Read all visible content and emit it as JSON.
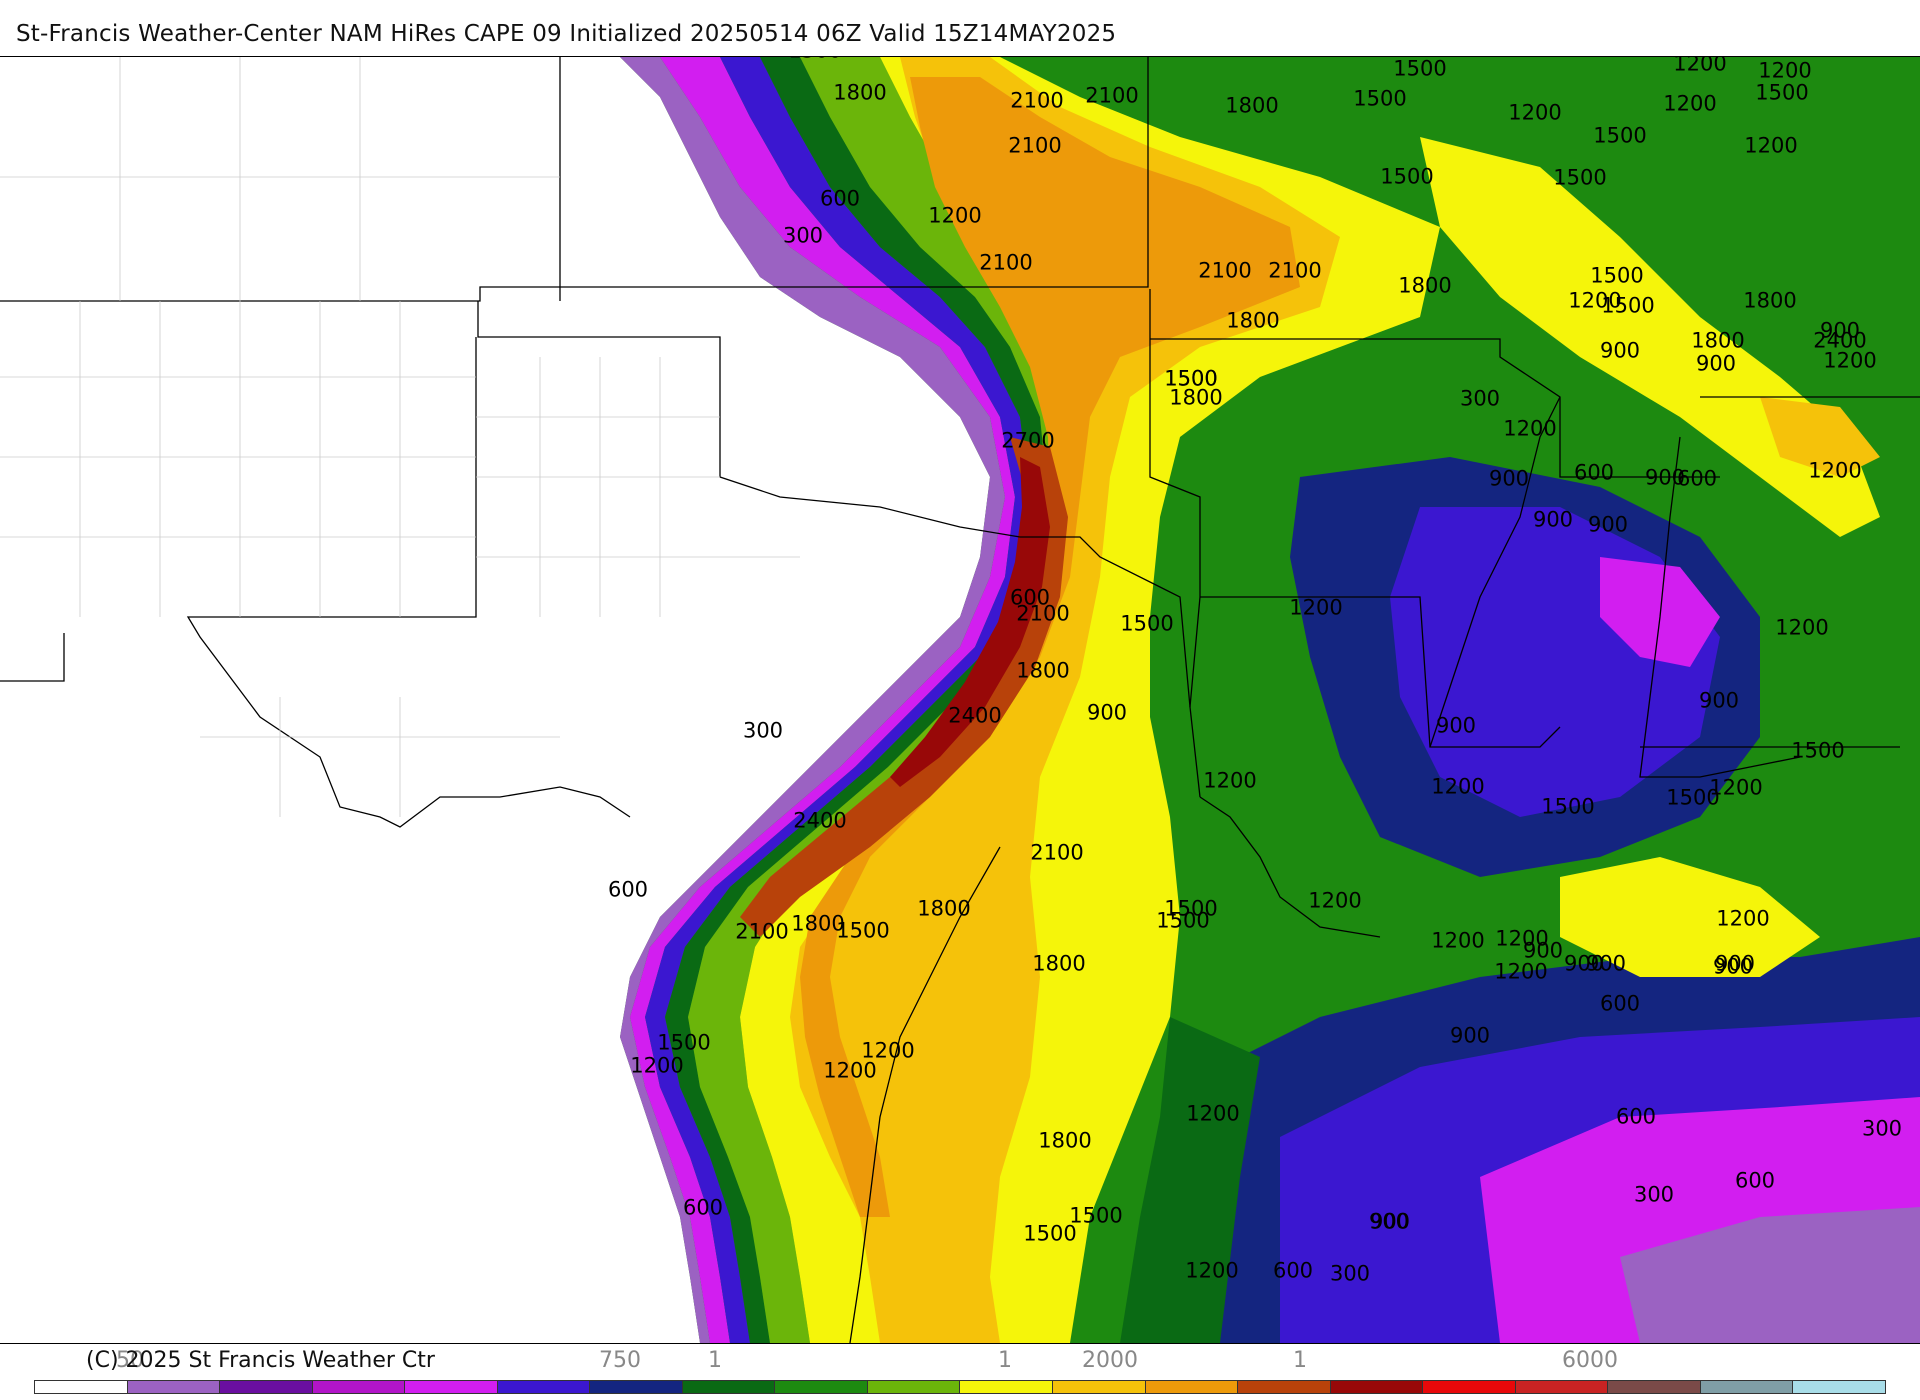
{
  "header": {
    "title": "St-Francis Weather-Center NAM HiRes CAPE  09 Initialized 20250514 06Z Valid 15Z14MAY2025"
  },
  "footer": {
    "copyright": "(C) 2025 St Francis Weather Ctr"
  },
  "legend": {
    "tick_labels": [
      "50",
      "750",
      "1",
      "1",
      "2000",
      "1",
      "6000"
    ],
    "colors": [
      "#ffffff",
      "#9b62c2",
      "#6a0fa0",
      "#b215c8",
      "#d21ef0",
      "#3b17d0",
      "#142580",
      "#0a6a14",
      "#1d8a10",
      "#6bb50a",
      "#f5f50a",
      "#f5c20a",
      "#ed9a0a",
      "#b8420a",
      "#980808",
      "#e8080a",
      "#c82323",
      "#7a4a48",
      "#7f9ea6",
      "#a8dde8"
    ]
  },
  "map": {
    "field": "CAPE",
    "contour_labels": [
      "1500",
      "1800",
      "2100",
      "2100",
      "1800",
      "1500",
      "1500",
      "1200",
      "1200",
      "1500",
      "2100",
      "1500",
      "1200",
      "1200",
      "1500",
      "1200",
      "600",
      "300",
      "1200",
      "1500",
      "1800",
      "2100",
      "2100",
      "1800",
      "2100",
      "1800",
      "1500",
      "1500",
      "1200",
      "1500",
      "1800",
      "900",
      "900",
      "1200",
      "2400",
      "1500",
      "1800",
      "900",
      "300",
      "2700",
      "1200",
      "900",
      "900",
      "600",
      "600",
      "900",
      "1200",
      "900",
      "600",
      "2100",
      "1500",
      "1200",
      "1200",
      "1800",
      "900",
      "900",
      "1500",
      "2400",
      "1200",
      "900",
      "300",
      "1200",
      "2400",
      "1200",
      "1500",
      "1500",
      "2100",
      "1200",
      "1500",
      "1200",
      "600",
      "2100",
      "1800",
      "1500",
      "1800",
      "1500",
      "1200",
      "1200",
      "900",
      "1800",
      "1200",
      "900",
      "900",
      "900",
      "900",
      "600",
      "300",
      "900",
      "1500",
      "1200",
      "1200",
      "1200",
      "600",
      "1800",
      "600",
      "300",
      "900",
      "1500",
      "600",
      "1200",
      "600",
      "1200",
      "1500",
      "900",
      "300"
    ],
    "colors": {
      "white": "#ffffff",
      "lavender": "#9b62c2",
      "darkpurple": "#6a0fa0",
      "purple": "#b215c8",
      "magenta": "#d21ef0",
      "blue": "#3b17d0",
      "navy": "#142580",
      "darkgreen": "#0a6a14",
      "green": "#1d8a10",
      "lightgreen": "#6bb50a",
      "yellow": "#f5f50a",
      "gold": "#f5c20a",
      "orange": "#ed9a0a",
      "rust": "#b8420a",
      "darkred": "#980808"
    }
  }
}
